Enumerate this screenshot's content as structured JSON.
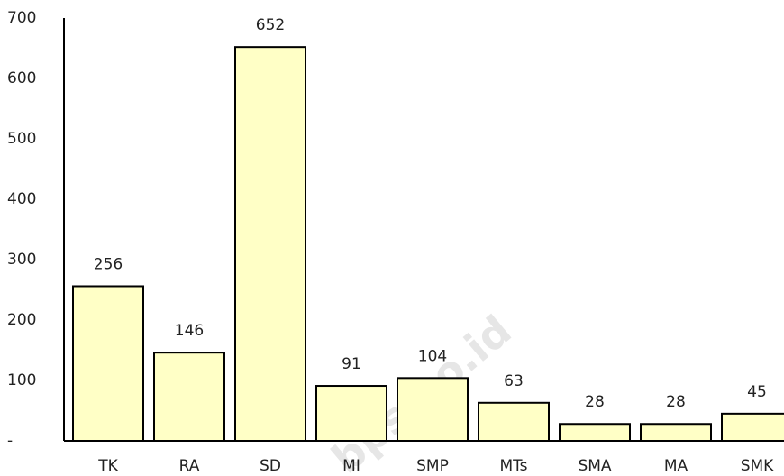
{
  "chart_data": {
    "type": "bar",
    "categories": [
      "TK",
      "RA",
      "SD",
      "MI",
      "SMP",
      "MTs",
      "SMA",
      "MA",
      "SMK"
    ],
    "values": [
      256,
      146,
      652,
      91,
      104,
      63,
      28,
      28,
      45
    ],
    "color": "#ffffc6",
    "ylim": [
      0,
      700
    ],
    "yticks": [
      {
        "value": 0,
        "label": "-"
      },
      100,
      200,
      300,
      400,
      500,
      600,
      700
    ],
    "grid": false,
    "watermark": "bps.go.id"
  }
}
